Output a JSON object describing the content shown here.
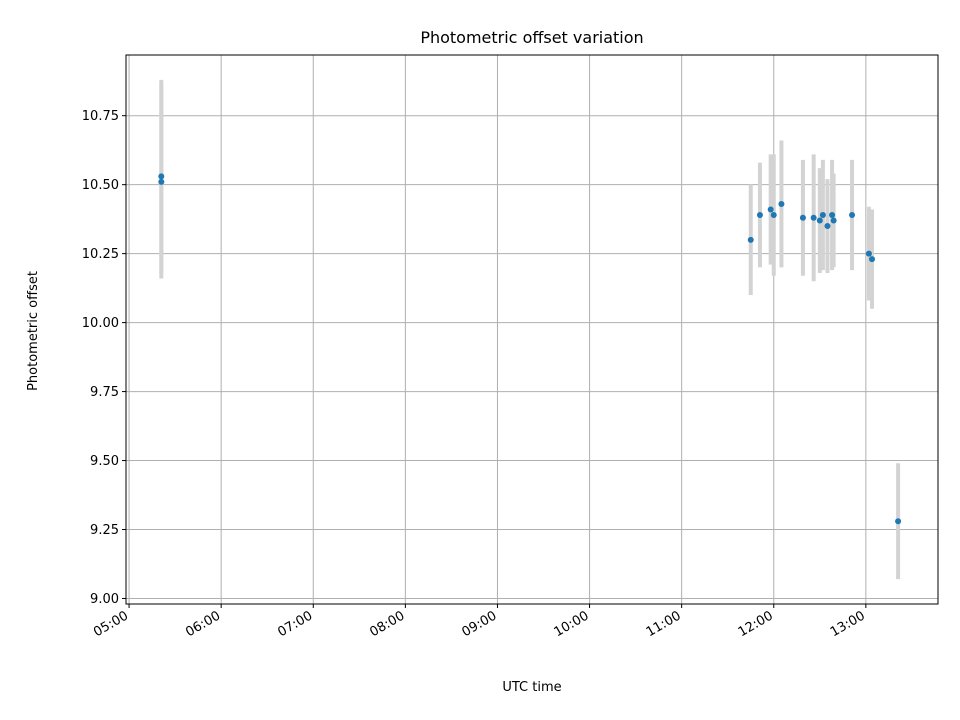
{
  "chart_data": {
    "type": "scatter",
    "title": "Photometric offset variation",
    "xlabel": "UTC time",
    "ylabel": "Photometric offset",
    "x_tick_labels": [
      "05:00",
      "06:00",
      "07:00",
      "08:00",
      "09:00",
      "10:00",
      "11:00",
      "12:00",
      "13:00"
    ],
    "y_tick_labels": [
      "9.00",
      "9.25",
      "9.50",
      "9.75",
      "10.00",
      "10.25",
      "10.50",
      "10.75"
    ],
    "xlim": [
      "04:58",
      "13:47"
    ],
    "ylim": [
      8.98,
      10.97
    ],
    "grid": true,
    "colors": {
      "point": "#1f77b4",
      "errorbar": "#d3d3d3",
      "grid": "#b0b0b0"
    },
    "series": [
      {
        "points": [
          {
            "x": "05:21",
            "y": 10.53,
            "err": 0.35
          },
          {
            "x": "05:21",
            "y": 10.51,
            "err": 0.35
          },
          {
            "x": "11:45",
            "y": 10.3,
            "err": 0.2
          },
          {
            "x": "11:51",
            "y": 10.39,
            "err": 0.19
          },
          {
            "x": "11:58",
            "y": 10.41,
            "err": 0.2
          },
          {
            "x": "12:00",
            "y": 10.39,
            "err": 0.22
          },
          {
            "x": "12:05",
            "y": 10.43,
            "err": 0.23
          },
          {
            "x": "12:19",
            "y": 10.38,
            "err": 0.21
          },
          {
            "x": "12:26",
            "y": 10.38,
            "err": 0.23
          },
          {
            "x": "12:30",
            "y": 10.37,
            "err": 0.19
          },
          {
            "x": "12:32",
            "y": 10.39,
            "err": 0.2
          },
          {
            "x": "12:35",
            "y": 10.35,
            "err": 0.17
          },
          {
            "x": "12:38",
            "y": 10.39,
            "err": 0.2
          },
          {
            "x": "12:39",
            "y": 10.37,
            "err": 0.17
          },
          {
            "x": "12:51",
            "y": 10.39,
            "err": 0.2
          },
          {
            "x": "13:02",
            "y": 10.25,
            "err": 0.17
          },
          {
            "x": "13:04",
            "y": 10.23,
            "err": 0.18
          },
          {
            "x": "13:21",
            "y": 9.28,
            "err": 0.21
          }
        ]
      }
    ]
  }
}
